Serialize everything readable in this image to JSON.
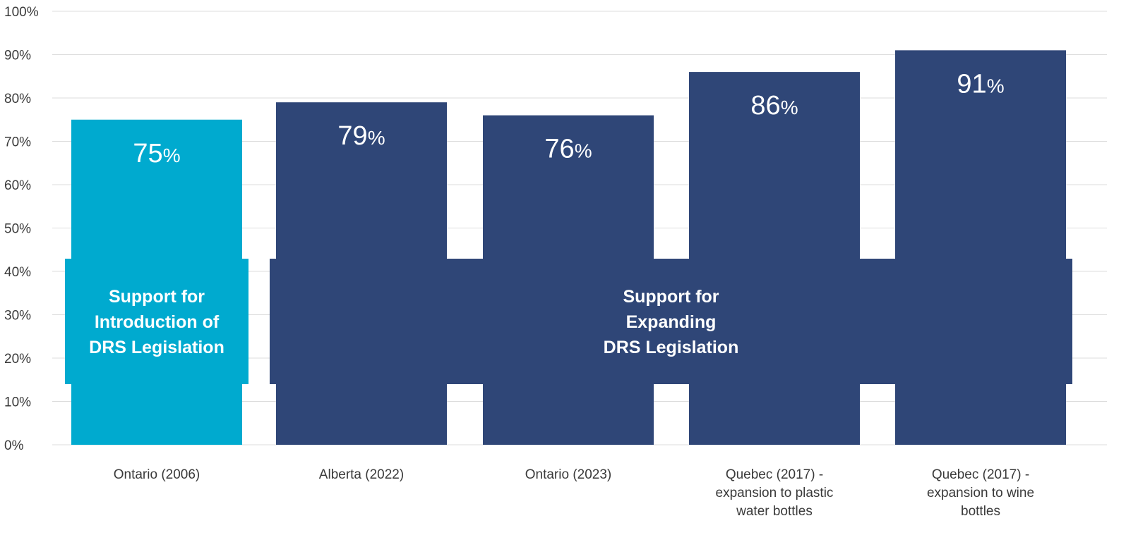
{
  "chart_data": {
    "type": "bar",
    "categories": [
      [
        "Ontario (2006)"
      ],
      [
        "Alberta (2022)"
      ],
      [
        "Ontario (2023)"
      ],
      [
        "Quebec (2017) -",
        "expansion to plastic",
        "water bottles"
      ],
      [
        "Quebec (2017) -",
        "expansion to wine",
        "bottles"
      ]
    ],
    "values": [
      75,
      79,
      76,
      86,
      91
    ],
    "value_labels": [
      {
        "num": "75",
        "unit": "%"
      },
      {
        "num": "79",
        "unit": "%"
      },
      {
        "num": "76",
        "unit": "%"
      },
      {
        "num": "86",
        "unit": "%"
      },
      {
        "num": "91",
        "unit": "%"
      }
    ],
    "ylim": [
      0,
      100
    ],
    "yticks": [
      "0%",
      "10%",
      "20%",
      "30%",
      "40%",
      "50%",
      "60%",
      "70%",
      "80%",
      "90%",
      "100%"
    ],
    "grid": true,
    "colors": {
      "highlight": "#00AACF",
      "default": "#2F4677",
      "grid": "#DCDCDC",
      "tick_text": "#3A3A3A",
      "value_text": "#FFFFFF"
    },
    "bar_colors": [
      "highlight",
      "default",
      "default",
      "default",
      "default"
    ],
    "groups": [
      {
        "lines": [
          "Support for",
          "Introduction of",
          "DRS Legislation"
        ],
        "from": 0,
        "to": 0,
        "color": "highlight"
      },
      {
        "lines": [
          "Support for",
          "Expanding",
          "DRS Legislation"
        ],
        "from": 1,
        "to": 4,
        "color": "default"
      }
    ]
  }
}
